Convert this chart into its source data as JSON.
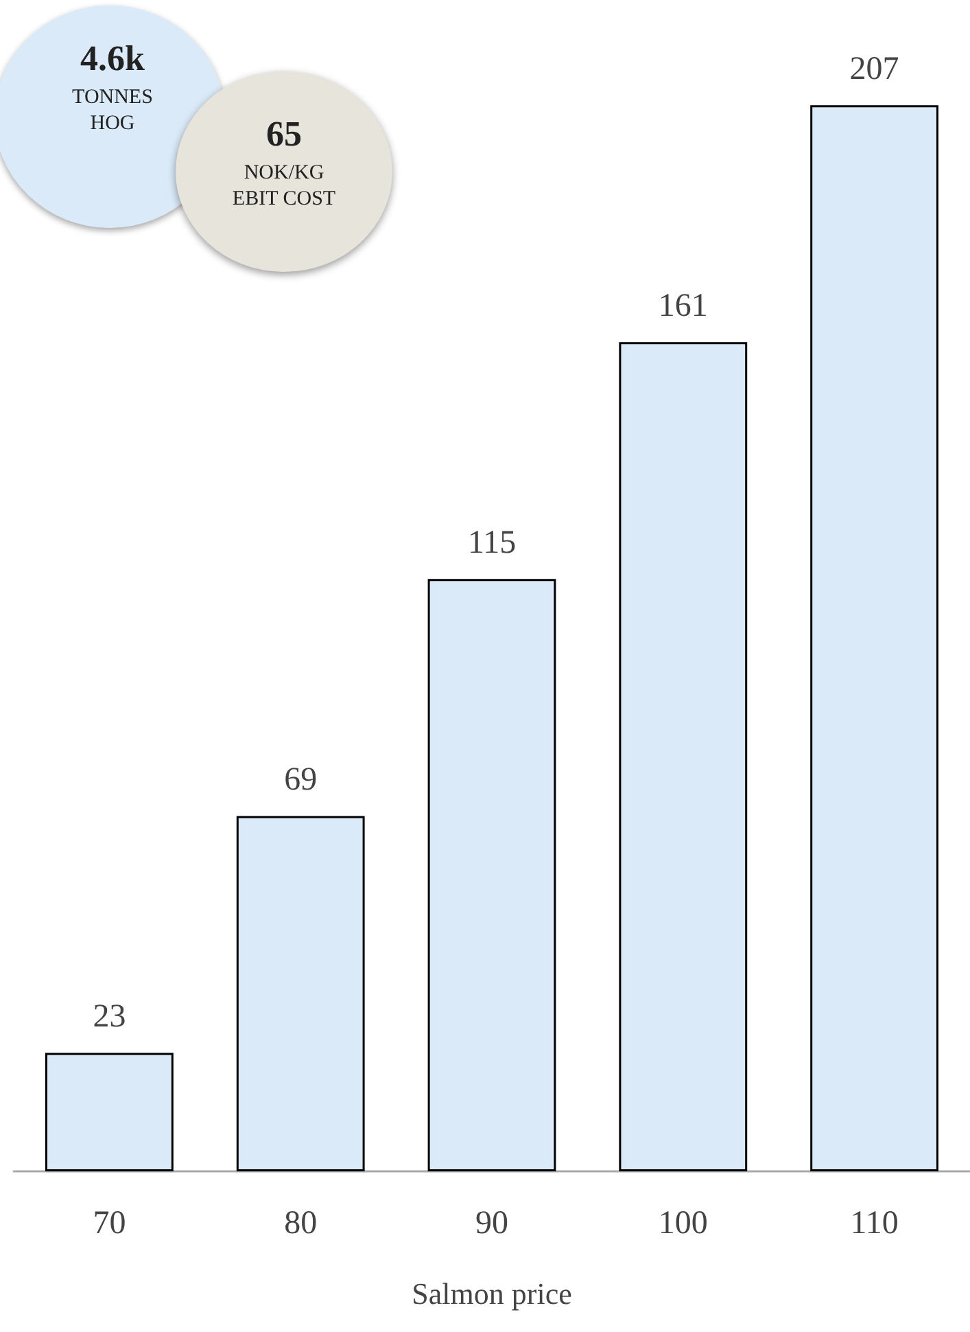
{
  "chart_data": {
    "type": "bar",
    "xlabel": "Salmon price",
    "categories": [
      "70",
      "80",
      "90",
      "100",
      "110"
    ],
    "values": [
      23,
      69,
      115,
      161,
      207
    ],
    "color": "#dbeaf8",
    "data_labels": true,
    "annotations": [
      "4.6k",
      "TONNES\nHOG",
      "65",
      "NOK/KG\nEBIT COST"
    ]
  }
}
